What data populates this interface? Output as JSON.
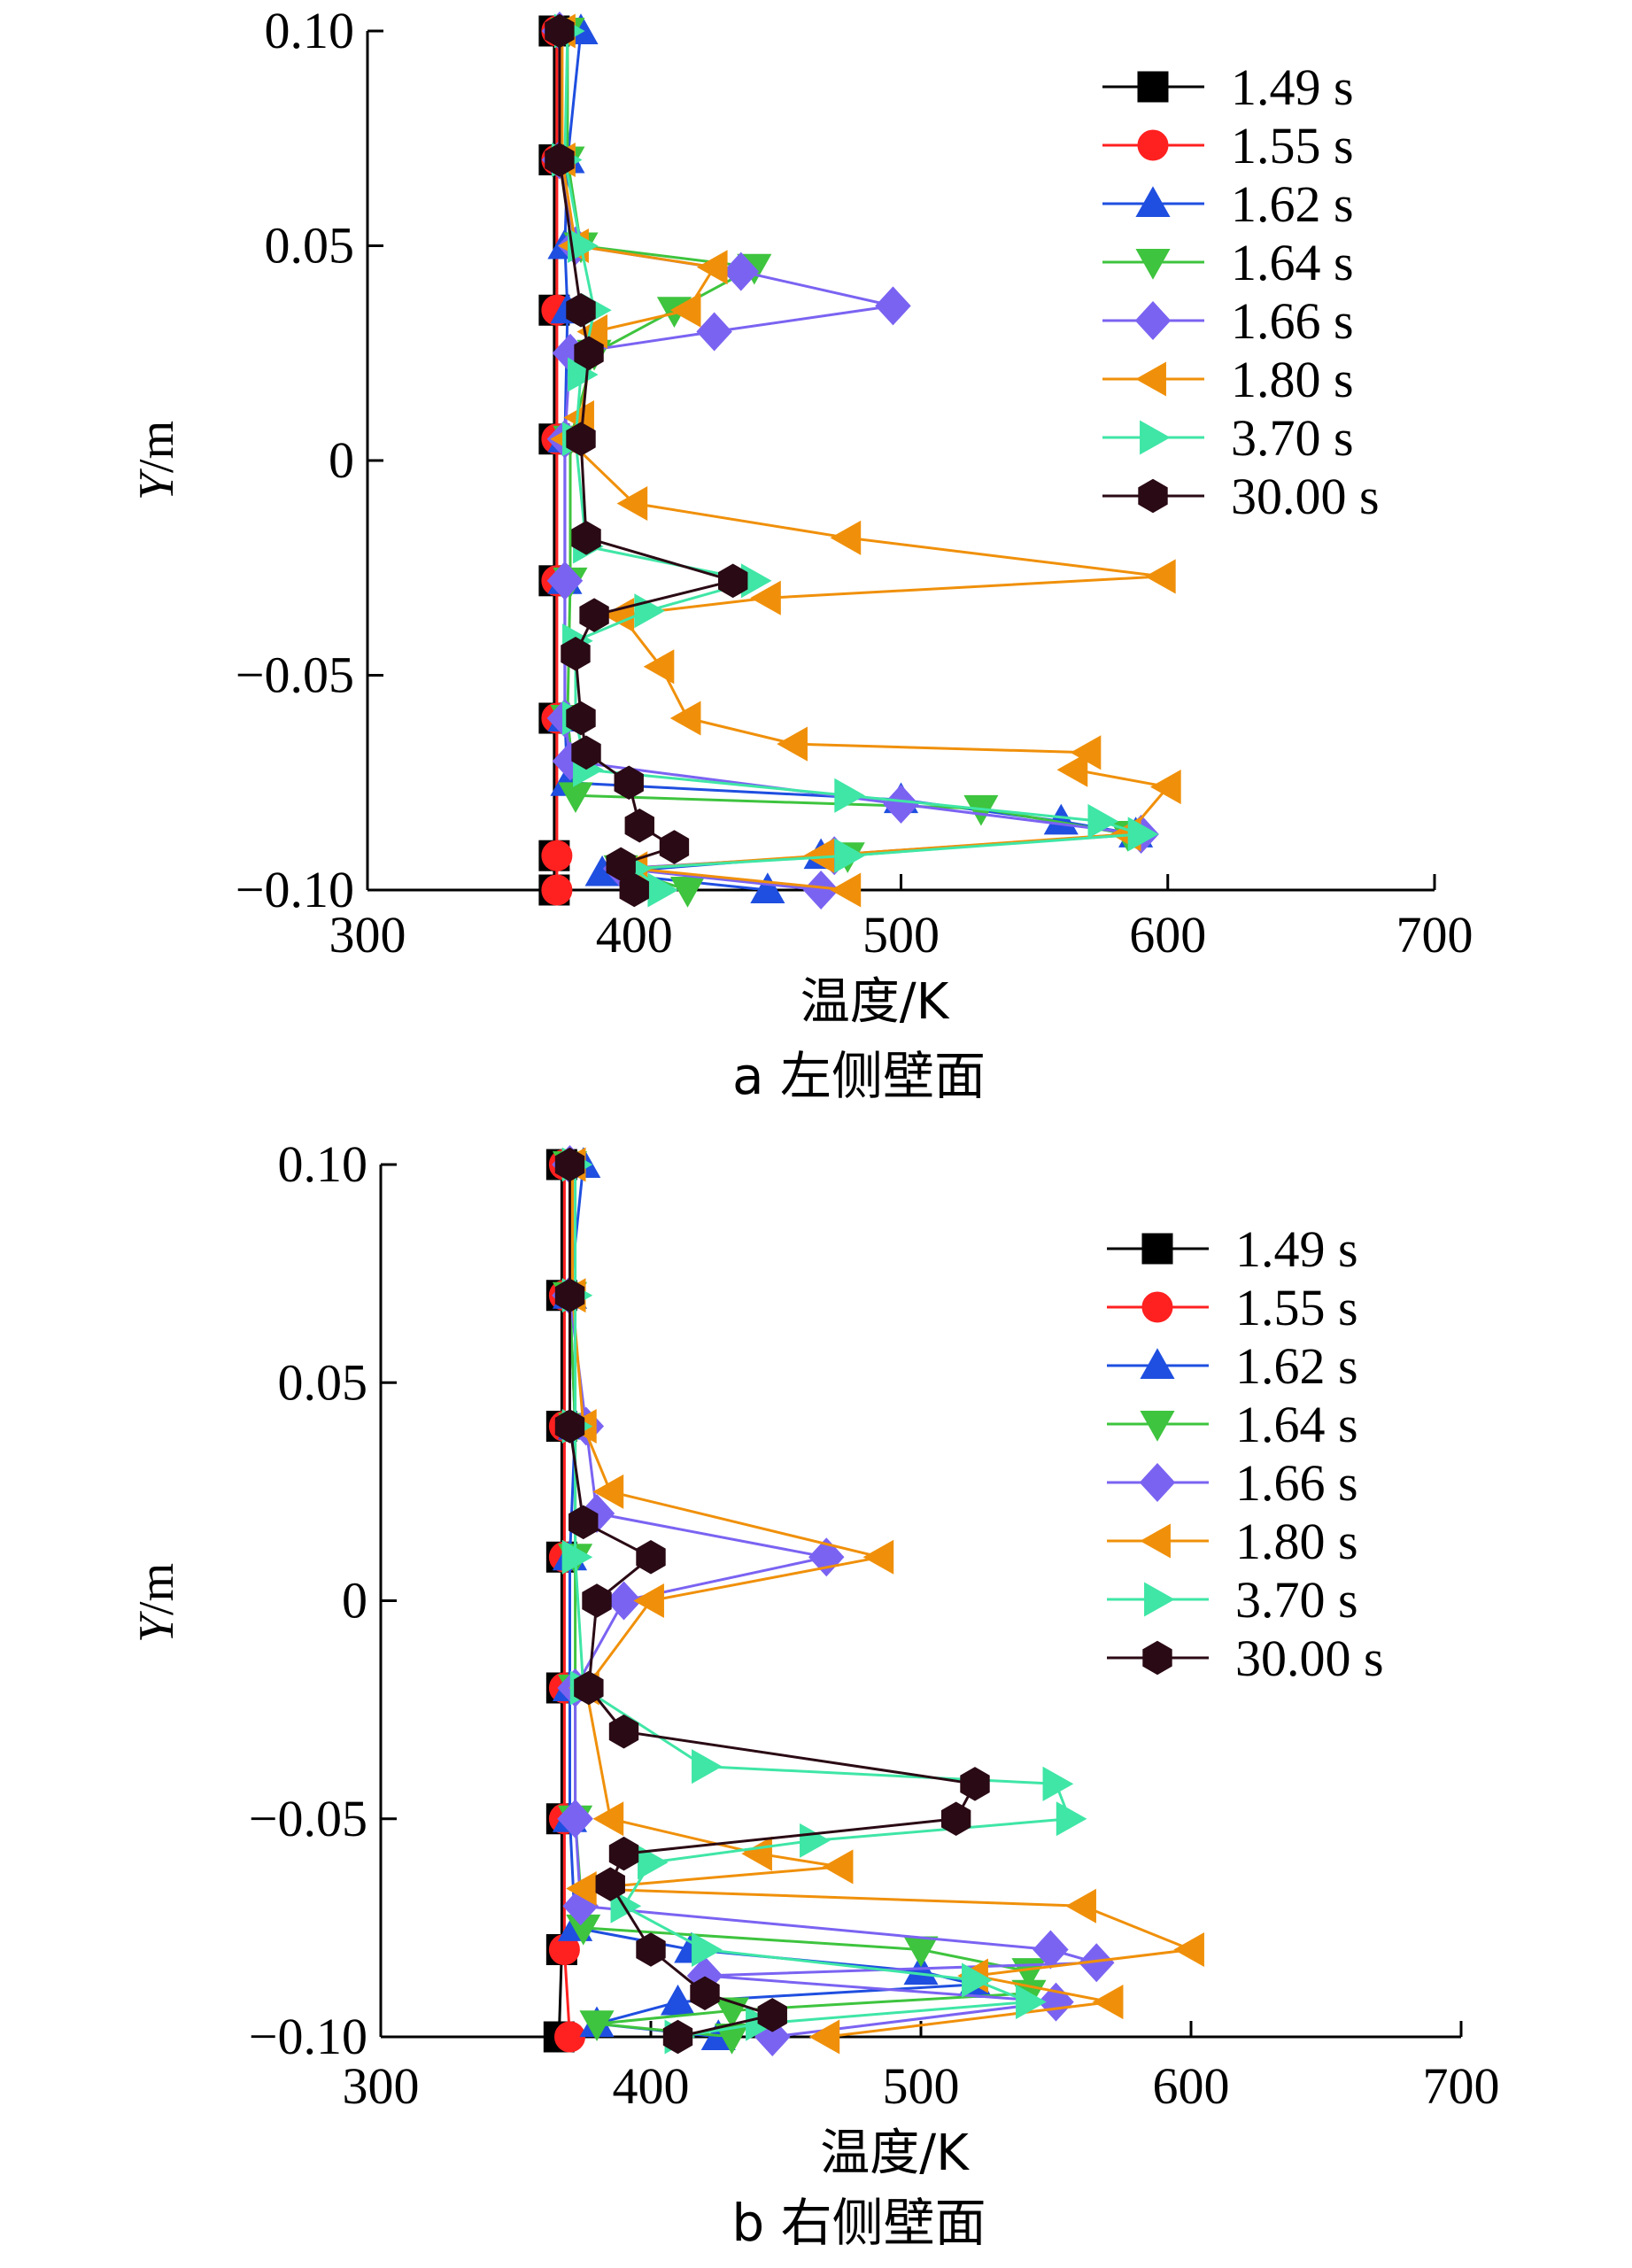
{
  "chart_data": [
    {
      "type": "line",
      "caption": "a  左侧壁面",
      "xlabel": "温度/K",
      "ylabel": "Y/m",
      "xlim": [
        300,
        700
      ],
      "ylim": [
        -0.1,
        0.1
      ],
      "xticks": [
        "300",
        "400",
        "500",
        "600",
        "700"
      ],
      "yticks": [
        "0.10",
        "0.05",
        "0",
        "−0.05",
        "−0.10"
      ],
      "legend_position": "top-right",
      "grid": false,
      "series": [
        {
          "name": "1.49 s",
          "color": "#000000",
          "marker": "square",
          "points": [
            [
              370,
              0.1
            ],
            [
              370,
              0.07
            ],
            [
              370,
              0.035
            ],
            [
              370,
              0.005
            ],
            [
              370,
              -0.028
            ],
            [
              370,
              -0.06
            ],
            [
              370,
              -0.092
            ],
            [
              370,
              -0.1
            ]
          ]
        },
        {
          "name": "1.55 s",
          "color": "#ff2020",
          "marker": "circle",
          "points": [
            [
              371,
              0.1
            ],
            [
              371,
              0.07
            ],
            [
              371,
              0.035
            ],
            [
              371,
              0.005
            ],
            [
              371,
              -0.028
            ],
            [
              371,
              -0.06
            ],
            [
              371,
              -0.092
            ],
            [
              371,
              -0.1
            ]
          ]
        },
        {
          "name": "1.62 s",
          "color": "#1f4fe0",
          "marker": "triangle-up",
          "points": [
            [
              380,
              0.1
            ],
            [
              375,
              0.07
            ],
            [
              374,
              0.05
            ],
            [
              375,
              0.035
            ],
            [
              374,
              0.005
            ],
            [
              374,
              -0.028
            ],
            [
              374,
              -0.06
            ],
            [
              375,
              -0.075
            ],
            [
              500,
              -0.079
            ],
            [
              560,
              -0.084
            ],
            [
              588,
              -0.087
            ],
            [
              470,
              -0.092
            ],
            [
              388,
              -0.096
            ],
            [
              450,
              -0.1
            ]
          ]
        },
        {
          "name": "1.64 s",
          "color": "#3ec43e",
          "marker": "triangle-down",
          "points": [
            [
              375,
              0.1
            ],
            [
              375,
              0.07
            ],
            [
              380,
              0.05
            ],
            [
              445,
              0.045
            ],
            [
              415,
              0.035
            ],
            [
              385,
              0.025
            ],
            [
              376,
              0.005
            ],
            [
              376,
              -0.028
            ],
            [
              375,
              -0.06
            ],
            [
              378,
              -0.078
            ],
            [
              530,
              -0.081
            ],
            [
              585,
              -0.087
            ],
            [
              480,
              -0.092
            ],
            [
              395,
              -0.095
            ],
            [
              420,
              -0.1
            ]
          ]
        },
        {
          "name": "1.66 s",
          "color": "#7b63f2",
          "marker": "diamond",
          "points": [
            [
              372,
              0.1
            ],
            [
              372,
              0.07
            ],
            [
              378,
              0.05
            ],
            [
              440,
              0.044
            ],
            [
              497,
              0.036
            ],
            [
              430,
              0.03
            ],
            [
              376,
              0.025
            ],
            [
              374,
              0.005
            ],
            [
              374,
              -0.028
            ],
            [
              374,
              -0.06
            ],
            [
              376,
              -0.07
            ],
            [
              500,
              -0.08
            ],
            [
              590,
              -0.087
            ],
            [
              475,
              -0.092
            ],
            [
              395,
              -0.095
            ],
            [
              470,
              -0.1
            ]
          ]
        },
        {
          "name": "1.80 s",
          "color": "#f0900a",
          "marker": "triangle-left",
          "points": [
            [
              373,
              0.1
            ],
            [
              373,
              0.07
            ],
            [
              378,
              0.05
            ],
            [
              430,
              0.045
            ],
            [
              420,
              0.035
            ],
            [
              385,
              0.03
            ],
            [
              380,
              0.01
            ],
            [
              375,
              0.005
            ],
            [
              400,
              -0.01
            ],
            [
              480,
              -0.018
            ],
            [
              598,
              -0.027
            ],
            [
              450,
              -0.032
            ],
            [
              395,
              -0.036
            ],
            [
              410,
              -0.048
            ],
            [
              420,
              -0.06
            ],
            [
              460,
              -0.066
            ],
            [
              570,
              -0.068
            ],
            [
              565,
              -0.072
            ],
            [
              600,
              -0.076
            ],
            [
              585,
              -0.087
            ],
            [
              470,
              -0.092
            ],
            [
              400,
              -0.095
            ],
            [
              480,
              -0.1
            ]
          ]
        },
        {
          "name": "3.70 s",
          "color": "#3fe6a6",
          "marker": "triangle-right",
          "points": [
            [
              375,
              0.1
            ],
            [
              374,
              0.07
            ],
            [
              380,
              0.05
            ],
            [
              385,
              0.035
            ],
            [
              380,
              0.02
            ],
            [
              378,
              0.005
            ],
            [
              382,
              -0.02
            ],
            [
              445,
              -0.028
            ],
            [
              405,
              -0.035
            ],
            [
              378,
              -0.042
            ],
            [
              378,
              -0.06
            ],
            [
              382,
              -0.072
            ],
            [
              480,
              -0.078
            ],
            [
              575,
              -0.084
            ],
            [
              590,
              -0.087
            ],
            [
              480,
              -0.092
            ],
            [
              400,
              -0.095
            ],
            [
              410,
              -0.1
            ]
          ]
        },
        {
          "name": "30.00 s",
          "color": "#2a0a14",
          "marker": "hexagon",
          "points": [
            [
              372,
              0.1
            ],
            [
              372,
              0.07
            ],
            [
              380,
              0.035
            ],
            [
              383,
              0.025
            ],
            [
              380,
              0.005
            ],
            [
              382,
              -0.018
            ],
            [
              437,
              -0.028
            ],
            [
              385,
              -0.036
            ],
            [
              378,
              -0.045
            ],
            [
              380,
              -0.06
            ],
            [
              382,
              -0.068
            ],
            [
              398,
              -0.075
            ],
            [
              402,
              -0.085
            ],
            [
              415,
              -0.09
            ],
            [
              395,
              -0.094
            ],
            [
              400,
              -0.1
            ]
          ]
        }
      ]
    },
    {
      "type": "line",
      "caption": "b  右侧壁面",
      "xlabel": "温度/K",
      "ylabel": "Y/m",
      "xlim": [
        300,
        700
      ],
      "ylim": [
        -0.1,
        0.1
      ],
      "xticks": [
        "300",
        "400",
        "500",
        "600",
        "700"
      ],
      "yticks": [
        "0.10",
        "0.05",
        "0",
        "−0.05",
        "−0.10"
      ],
      "legend_position": "top-right",
      "grid": false,
      "series": [
        {
          "name": "1.49 s",
          "color": "#000000",
          "marker": "square",
          "points": [
            [
              367,
              0.1
            ],
            [
              367,
              0.07
            ],
            [
              367,
              0.04
            ],
            [
              367,
              0.01
            ],
            [
              367,
              -0.02
            ],
            [
              367,
              -0.05
            ],
            [
              367,
              -0.08
            ],
            [
              366,
              -0.1
            ]
          ]
        },
        {
          "name": "1.55 s",
          "color": "#ff2020",
          "marker": "circle",
          "points": [
            [
              368,
              0.1
            ],
            [
              368,
              0.07
            ],
            [
              368,
              0.04
            ],
            [
              368,
              0.01
            ],
            [
              368,
              -0.02
            ],
            [
              368,
              -0.05
            ],
            [
              368,
              -0.08
            ],
            [
              370,
              -0.1
            ]
          ]
        },
        {
          "name": "1.62 s",
          "color": "#1f4fe0",
          "marker": "triangle-up",
          "points": [
            [
              375,
              0.1
            ],
            [
              370,
              0.07
            ],
            [
              372,
              0.04
            ],
            [
              370,
              0.01
            ],
            [
              370,
              -0.02
            ],
            [
              370,
              -0.05
            ],
            [
              372,
              -0.075
            ],
            [
              415,
              -0.08
            ],
            [
              500,
              -0.085
            ],
            [
              520,
              -0.088
            ],
            [
              410,
              -0.092
            ],
            [
              380,
              -0.097
            ],
            [
              425,
              -0.1
            ]
          ]
        },
        {
          "name": "1.64 s",
          "color": "#3ec43e",
          "marker": "triangle-down",
          "points": [
            [
              370,
              0.1
            ],
            [
              370,
              0.07
            ],
            [
              372,
              0.04
            ],
            [
              372,
              0.01
            ],
            [
              372,
              -0.02
            ],
            [
              372,
              -0.05
            ],
            [
              375,
              -0.075
            ],
            [
              500,
              -0.08
            ],
            [
              540,
              -0.085
            ],
            [
              540,
              -0.09
            ],
            [
              430,
              -0.094
            ],
            [
              380,
              -0.097
            ],
            [
              430,
              -0.1
            ]
          ]
        },
        {
          "name": "1.66 s",
          "color": "#7b63f2",
          "marker": "diamond",
          "points": [
            [
              370,
              0.1
            ],
            [
              370,
              0.07
            ],
            [
              376,
              0.04
            ],
            [
              380,
              0.02
            ],
            [
              465,
              0.01
            ],
            [
              390,
              0.0
            ],
            [
              372,
              -0.02
            ],
            [
              372,
              -0.05
            ],
            [
              374,
              -0.07
            ],
            [
              548,
              -0.08
            ],
            [
              565,
              -0.083
            ],
            [
              420,
              -0.086
            ],
            [
              550,
              -0.092
            ],
            [
              445,
              -0.1
            ]
          ]
        },
        {
          "name": "1.80 s",
          "color": "#f0900a",
          "marker": "triangle-left",
          "points": [
            [
              371,
              0.1
            ],
            [
              371,
              0.07
            ],
            [
              375,
              0.04
            ],
            [
              385,
              0.025
            ],
            [
              485,
              0.01
            ],
            [
              400,
              0.0
            ],
            [
              376,
              -0.02
            ],
            [
              385,
              -0.05
            ],
            [
              440,
              -0.058
            ],
            [
              470,
              -0.061
            ],
            [
              375,
              -0.066
            ],
            [
              560,
              -0.07
            ],
            [
              600,
              -0.08
            ],
            [
              520,
              -0.086
            ],
            [
              570,
              -0.092
            ],
            [
              465,
              -0.1
            ]
          ]
        },
        {
          "name": "3.70 s",
          "color": "#3fe6a6",
          "marker": "triangle-right",
          "points": [
            [
              372,
              0.1
            ],
            [
              372,
              0.07
            ],
            [
              372,
              0.04
            ],
            [
              372,
              0.01
            ],
            [
              375,
              -0.02
            ],
            [
              420,
              -0.038
            ],
            [
              550,
              -0.042
            ],
            [
              555,
              -0.05
            ],
            [
              460,
              -0.055
            ],
            [
              400,
              -0.06
            ],
            [
              390,
              -0.07
            ],
            [
              420,
              -0.08
            ],
            [
              520,
              -0.087
            ],
            [
              540,
              -0.092
            ],
            [
              440,
              -0.097
            ],
            [
              410,
              -0.1
            ]
          ]
        },
        {
          "name": "30.00 s",
          "color": "#2a0a14",
          "marker": "hexagon",
          "points": [
            [
              370,
              0.1
            ],
            [
              370,
              0.07
            ],
            [
              370,
              0.04
            ],
            [
              375,
              0.018
            ],
            [
              400,
              0.01
            ],
            [
              380,
              0.0
            ],
            [
              377,
              -0.02
            ],
            [
              390,
              -0.03
            ],
            [
              520,
              -0.042
            ],
            [
              513,
              -0.05
            ],
            [
              390,
              -0.058
            ],
            [
              385,
              -0.065
            ],
            [
              400,
              -0.08
            ],
            [
              420,
              -0.09
            ],
            [
              445,
              -0.095
            ],
            [
              410,
              -0.1
            ]
          ]
        }
      ]
    }
  ]
}
